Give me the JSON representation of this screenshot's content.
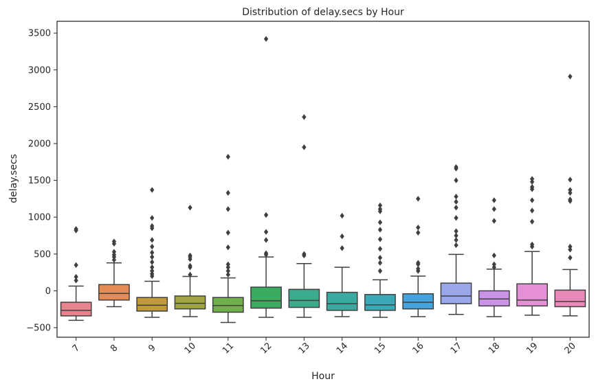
{
  "chart_data": {
    "type": "box",
    "title": "Distribution of delay.secs by Hour",
    "xlabel": "Hour",
    "ylabel": "delay.secs",
    "ylim": [
      -630,
      3660
    ],
    "yticks": [
      -500,
      0,
      500,
      1000,
      1500,
      2000,
      2500,
      3000,
      3500
    ],
    "categories": [
      "7",
      "8",
      "9",
      "10",
      "11",
      "12",
      "13",
      "14",
      "15",
      "16",
      "17",
      "18",
      "19",
      "20"
    ],
    "grid": false,
    "boxes": [
      {
        "hour": "7",
        "color": "#e8828f",
        "whislo": -400,
        "q1": -340,
        "med": -265,
        "q3": -155,
        "whishi": 65,
        "fliers": [
          140,
          190,
          350,
          820,
          840
        ]
      },
      {
        "hour": "8",
        "color": "#e58b55",
        "whislo": -215,
        "q1": -125,
        "med": -35,
        "q3": 85,
        "whishi": 380,
        "fliers": [
          420,
          460,
          490,
          530,
          640,
          670
        ]
      },
      {
        "hour": "9",
        "color": "#c09a3b",
        "whislo": -360,
        "q1": -275,
        "med": -195,
        "q3": -90,
        "whishi": 130,
        "fliers": [
          200,
          230,
          270,
          320,
          390,
          460,
          520,
          600,
          690,
          850,
          880,
          990,
          1370
        ]
      },
      {
        "hour": "10",
        "color": "#a2a443",
        "whislo": -350,
        "q1": -245,
        "med": -170,
        "q3": -70,
        "whishi": 195,
        "fliers": [
          220,
          320,
          340,
          430,
          460,
          480,
          1130
        ]
      },
      {
        "hour": "11",
        "color": "#6fb04a",
        "whislo": -430,
        "q1": -290,
        "med": -200,
        "q3": -90,
        "whishi": 175,
        "fliers": [
          220,
          270,
          320,
          360,
          590,
          790,
          1110,
          1330,
          1820
        ]
      },
      {
        "hour": "12",
        "color": "#3bab5d",
        "whislo": -360,
        "q1": -235,
        "med": -135,
        "q3": 50,
        "whishi": 460,
        "fliers": [
          490,
          510,
          690,
          800,
          1030,
          3420
        ]
      },
      {
        "hour": "13",
        "color": "#3aab8d",
        "whislo": -360,
        "q1": -225,
        "med": -130,
        "q3": 20,
        "whishi": 370,
        "fliers": [
          480,
          500,
          1950,
          2360
        ]
      },
      {
        "hour": "14",
        "color": "#3ba99f",
        "whislo": -350,
        "q1": -265,
        "med": -175,
        "q3": -20,
        "whishi": 320,
        "fliers": [
          580,
          740,
          1020
        ]
      },
      {
        "hour": "15",
        "color": "#3aabb6",
        "whislo": -360,
        "q1": -265,
        "med": -190,
        "q3": -50,
        "whishi": 150,
        "fliers": [
          270,
          380,
          450,
          570,
          700,
          830,
          930,
          1080,
          1110,
          1160
        ]
      },
      {
        "hour": "16",
        "color": "#45a3de",
        "whislo": -350,
        "q1": -245,
        "med": -155,
        "q3": -40,
        "whishi": 200,
        "fliers": [
          270,
          300,
          360,
          380,
          790,
          860,
          1250
        ]
      },
      {
        "hour": "17",
        "color": "#9aa6ea",
        "whislo": -320,
        "q1": -175,
        "med": -70,
        "q3": 105,
        "whishi": 495,
        "fliers": [
          620,
          690,
          750,
          810,
          990,
          1130,
          1210,
          1280,
          1500,
          1660,
          1680
        ]
      },
      {
        "hour": "18",
        "color": "#c994e6",
        "whislo": -350,
        "q1": -205,
        "med": -110,
        "q3": 0,
        "whishi": 295,
        "fliers": [
          320,
          360,
          480,
          950,
          1110,
          1230
        ]
      },
      {
        "hour": "19",
        "color": "#e58fd7",
        "whislo": -330,
        "q1": -205,
        "med": -125,
        "q3": 95,
        "whishi": 535,
        "fliers": [
          600,
          630,
          940,
          1090,
          1230,
          1380,
          1410,
          1480,
          1520
        ]
      },
      {
        "hour": "20",
        "color": "#e88ab9",
        "whislo": -340,
        "q1": -215,
        "med": -145,
        "q3": 10,
        "whishi": 290,
        "fliers": [
          450,
          560,
          600,
          1220,
          1240,
          1330,
          1370,
          1510,
          2910
        ]
      }
    ]
  }
}
